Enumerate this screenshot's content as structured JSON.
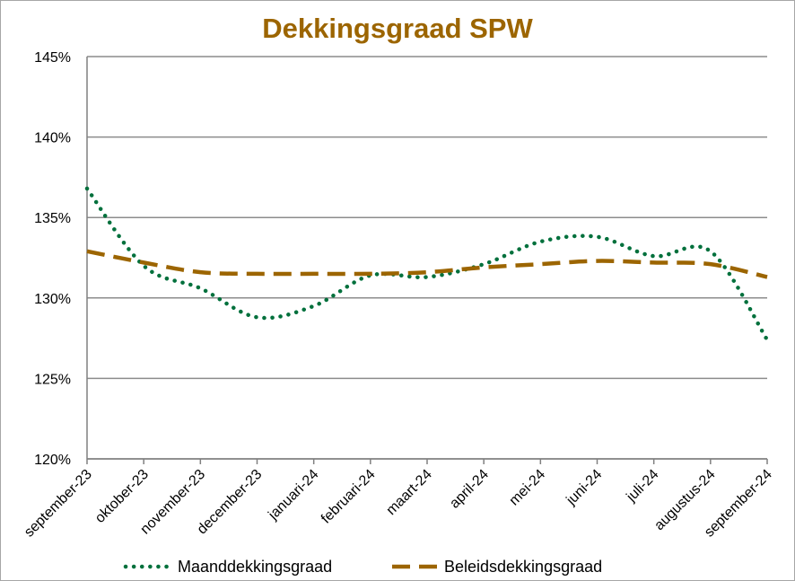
{
  "chart_data": {
    "type": "line",
    "title": "Dekkingsgraad  SPW",
    "xlabel": "",
    "ylabel": "",
    "ylim": [
      1.2,
      1.45
    ],
    "y_ticks": [
      "120%",
      "125%",
      "130%",
      "135%",
      "140%",
      "145%"
    ],
    "categories": [
      "september-23",
      "oktober-23",
      "november-23",
      "december-23",
      "januari-24",
      "februari-24",
      "maart-24",
      "april-24",
      "mei-24",
      "juni-24",
      "juli-24",
      "augustus-24",
      "september-24"
    ],
    "grid": true,
    "legend_position": "bottom",
    "series": [
      {
        "name": "Maanddekkingsgraad",
        "color": "#00703c",
        "style": "dotted",
        "values": [
          1.368,
          1.32,
          1.306,
          1.288,
          1.295,
          1.314,
          1.313,
          1.321,
          1.335,
          1.338,
          1.326,
          1.329,
          1.274
        ]
      },
      {
        "name": "Beleidsdekkingsgraad",
        "color": "#9c6500",
        "style": "dashed",
        "values": [
          1.329,
          1.322,
          1.316,
          1.315,
          1.315,
          1.315,
          1.316,
          1.319,
          1.321,
          1.323,
          1.322,
          1.321,
          1.313
        ]
      }
    ]
  }
}
